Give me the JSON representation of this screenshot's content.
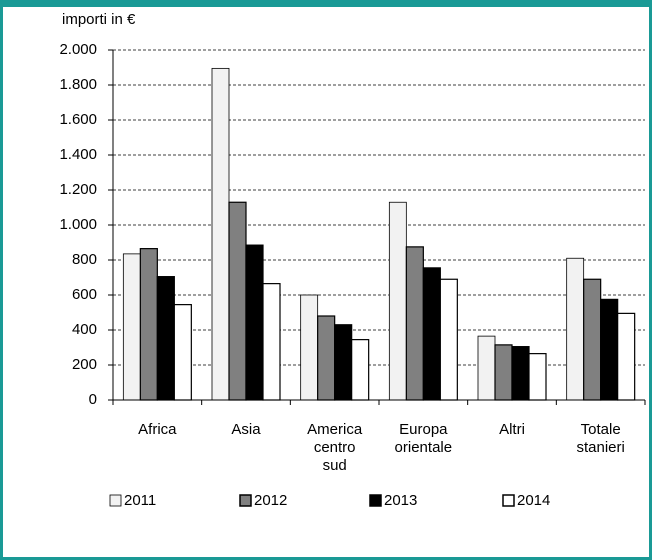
{
  "chart_data": {
    "type": "bar",
    "y_axis_label": "importi in €",
    "categories": [
      "Africa",
      "Asia",
      "America centro sud",
      "Europa orientale",
      "Altri",
      "Totale stanieri"
    ],
    "series": [
      {
        "name": "2011",
        "color": "#f2f2f2",
        "values": [
          835,
          1895,
          600,
          1130,
          365,
          810
        ]
      },
      {
        "name": "2012",
        "color": "#808080",
        "values": [
          865,
          1130,
          480,
          875,
          315,
          690
        ]
      },
      {
        "name": "2013",
        "color": "#000000",
        "values": [
          705,
          885,
          430,
          755,
          305,
          575
        ]
      },
      {
        "name": "2014",
        "color": "#ffffff",
        "values": [
          545,
          665,
          345,
          690,
          265,
          495
        ]
      }
    ],
    "ylim": [
      0,
      2000
    ],
    "yticks": [
      0,
      200,
      400,
      600,
      800,
      {
        "value": 1000,
        "label": "1.000"
      },
      {
        "value": 1200,
        "label": "1.200"
      },
      {
        "value": 1400,
        "label": "1.400"
      },
      {
        "value": 1600,
        "label": "1.600"
      },
      {
        "value": 1800,
        "label": "1.800"
      },
      {
        "value": 2000,
        "label": "2.000"
      }
    ],
    "grid": true
  }
}
